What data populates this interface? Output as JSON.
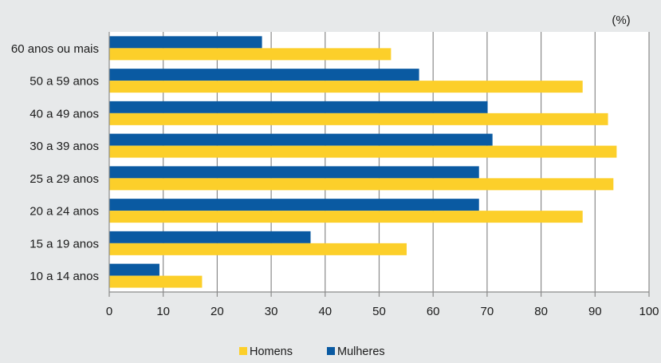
{
  "chart_data": {
    "type": "bar",
    "orientation": "horizontal",
    "unit_label": "(%)",
    "categories": [
      "60 anos ou mais",
      "50 a 59 anos",
      "40 a 49 anos",
      "30 a 39 anos",
      "25 a 29 anos",
      "20 a 24 anos",
      "15 a 19 anos",
      "10 a 14 anos"
    ],
    "series": [
      {
        "name": "Mulheres",
        "color": "#0a5aa2",
        "values": [
          28.3,
          57.4,
          70.1,
          71.0,
          68.5,
          68.5,
          37.3,
          9.3
        ]
      },
      {
        "name": "Homens",
        "color": "#fccf2a",
        "values": [
          52.2,
          87.7,
          92.4,
          94.0,
          93.4,
          87.7,
          55.1,
          17.2
        ]
      }
    ],
    "xlim": [
      0,
      100
    ],
    "xticks": [
      "0",
      "10",
      "20",
      "30",
      "40",
      "50",
      "60",
      "70",
      "80",
      "90",
      "100"
    ],
    "grid": true,
    "legend_position": "bottom",
    "legend": [
      "Homens",
      "Mulheres"
    ]
  }
}
